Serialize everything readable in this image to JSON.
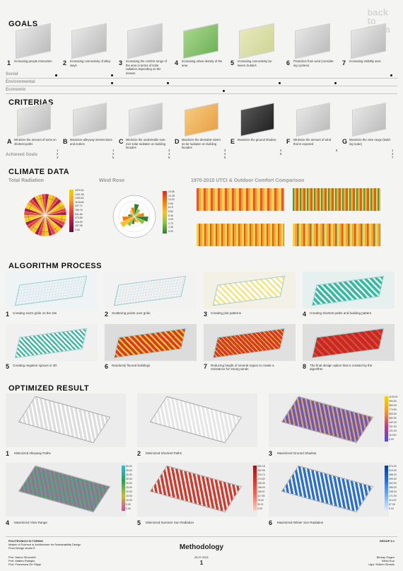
{
  "back_label": "back\nto\nReira",
  "sections": {
    "goals": "GOALS",
    "criterias": "CRITERIAS",
    "climate": "CLIMATE DATA",
    "algorithm": "ALGORITHM PROCESS",
    "optimized": "OPTIMIZED RESULT"
  },
  "goals": [
    {
      "n": "1",
      "text": "Increasing people interaction"
    },
    {
      "n": "2",
      "text": "Increasing connectivity of alley-ways"
    },
    {
      "n": "3",
      "text": "Increasing the comfort range of the area in terms of solar radiation depending on the season"
    },
    {
      "n": "4",
      "text": "Increasing urban density of the area"
    },
    {
      "n": "5",
      "text": "Increasing connectivity be-tween clusters"
    },
    {
      "n": "6",
      "text": "Protection from wind (consider-ing cyclone)"
    },
    {
      "n": "7",
      "text": "Increasing visibility area"
    }
  ],
  "goal_rows": [
    "Social",
    "Environmental",
    "Economic"
  ],
  "criterias": [
    {
      "n": "A",
      "text": "Minimize the amount of turns on shortest paths"
    },
    {
      "n": "B",
      "text": "Maximize alleyway intersections and entries"
    },
    {
      "n": "C",
      "text": "Minimize the undesirable sum-mer solar radiation on building facades"
    },
    {
      "n": "D",
      "text": "Maximize the desirable winter so-lar radiation on building facades"
    },
    {
      "n": "E",
      "text": "Maximize the ground shadow"
    },
    {
      "n": "F",
      "text": "Minimize the amount of wind that is exposed"
    },
    {
      "n": "G",
      "text": "Maximize the view range (build-ing scale)"
    }
  ],
  "achieved_label": "Achieved Goals",
  "achieved": [
    [
      "1",
      "2",
      "3"
    ],
    [
      "1",
      "2",
      "5"
    ],
    [
      "3",
      "4",
      "6"
    ],
    [
      "3",
      "4",
      "6"
    ],
    [
      "4",
      "6"
    ],
    [
      "6"
    ],
    [
      "1",
      "4",
      "7"
    ]
  ],
  "climate": {
    "total_radiation": "Total Radiation",
    "wind_rose": "Wind Rose",
    "utci": "1970-2010 UTCI & Outdoor Comfort Comparison",
    "rad_legend": [
      "1579.51",
      "1421.56",
      "1263.61",
      "1105.66",
      "947.71",
      "789.76",
      "631.80",
      "473.85",
      "315.90",
      "157.95",
      "0.00"
    ],
    "wind_legend": [
      "13.65",
      "12.28",
      "10.92",
      "9.55",
      "8.19",
      "6.82",
      "5.46",
      "4.09",
      "2.73",
      "1.36",
      "0.00"
    ]
  },
  "algorithm": [
    {
      "n": "1",
      "text": "Creating 4x4m grids on the site"
    },
    {
      "n": "2",
      "text": "Scattering points over grids"
    },
    {
      "n": "3",
      "text": "Creating plot patterns"
    },
    {
      "n": "4",
      "text": "Creating shortest paths and building pattern"
    },
    {
      "n": "5",
      "text": "Creating negative spaces in 3D"
    },
    {
      "n": "6",
      "text": "Randomly floored buildings"
    },
    {
      "n": "7",
      "text": "Reducing height of several region to create a resistance for strong winds"
    },
    {
      "n": "8",
      "text": "The final design option that is created by the algorithm"
    }
  ],
  "optimized": [
    {
      "n": "1",
      "text": "Minimized Alleyway Paths"
    },
    {
      "n": "2",
      "text": "Minimized Shortest Paths"
    },
    {
      "n": "3",
      "text": "Maximized Ground Shadow"
    },
    {
      "n": "4",
      "text": "Maximized View Range"
    },
    {
      "n": "5",
      "text": "Minimized Summer Sun Radiation"
    },
    {
      "n": "6",
      "text": "Maximized Winter Sun Radiation"
    }
  ],
  "legends": {
    "shadow": [
      "1105.00",
      "994.50",
      "884.00",
      "773.50",
      "663.00",
      "552.50",
      "442.00",
      "331.50",
      "221.00",
      "110.50",
      "0.00"
    ],
    "view": [
      "50.00",
      "45.00",
      "40.00",
      "35.00",
      "30.00",
      "25.00",
      "20.00",
      "15.00",
      "10.00",
      "5.00",
      "0.00"
    ],
    "summer": [
      "392.18",
      "352.96",
      "313.74",
      "274.52",
      "235.30",
      "196.09",
      "156.87",
      "117.65",
      "78.43",
      "39.21",
      "0.00"
    ],
    "winter": [
      "570.00",
      "513.00",
      "456.00",
      "399.00",
      "342.00",
      "285.00",
      "228.00",
      "171.00",
      "114.00",
      "57.00",
      "0.00"
    ]
  },
  "footer": {
    "school": "POLITECNICO DI TORINO",
    "program": "Master of Science in Architecture for Sustainability Design",
    "course": "Final Design studio E",
    "profs": [
      "Prof. Marco Simonetti",
      "Prof. Matteo Robiglio",
      "Prof. Francesca De Filippi"
    ],
    "date": "26.07.2021",
    "title": "Methodology",
    "page": "1",
    "group": "GROUP 3.1",
    "members": [
      "Berkay Özgen",
      "Weixi Kuo",
      "Ugur Yildirim Simsek"
    ]
  },
  "colors": {
    "accent_red": "#d33a2c",
    "teal": "#3ab7a0",
    "yellow": "#f1c232"
  }
}
